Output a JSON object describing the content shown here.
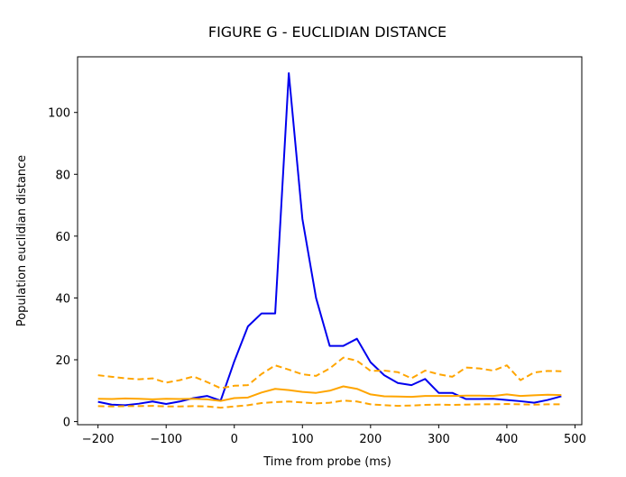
{
  "chart_data": {
    "type": "line",
    "title": "FIGURE G - EUCLIDIAN DISTANCE",
    "xlabel": "Time from probe (ms)",
    "ylabel": "Population euclidian distance",
    "xlim": [
      -230,
      510
    ],
    "ylim": [
      -1,
      118
    ],
    "xticks": [
      -200,
      -100,
      0,
      100,
      200,
      300,
      400,
      500
    ],
    "yticks": [
      0,
      20,
      40,
      60,
      80,
      100
    ],
    "grid": false,
    "x": [
      -200,
      -180,
      -160,
      -140,
      -120,
      -100,
      -80,
      -60,
      -40,
      -20,
      0,
      20,
      40,
      60,
      80,
      100,
      120,
      140,
      160,
      180,
      200,
      220,
      240,
      260,
      280,
      300,
      320,
      340,
      360,
      380,
      400,
      420,
      440,
      460,
      480
    ],
    "series": [
      {
        "color": "#0000ee",
        "style": "solid",
        "values": [
          6.4,
          5.5,
          5.3,
          5.8,
          6.5,
          5.7,
          6.5,
          7.6,
          8.3,
          6.8,
          19.5,
          30.8,
          35.0,
          35.0,
          112.7,
          65.5,
          40.0,
          24.5,
          24.5,
          26.8,
          19.2,
          15.0,
          12.5,
          11.8,
          13.8,
          9.3,
          9.3,
          7.3,
          7.3,
          7.4,
          7.0,
          6.6,
          6.1,
          7.0,
          8.2
        ]
      },
      {
        "color": "#ffa500",
        "style": "solid",
        "values": [
          7.4,
          7.3,
          7.5,
          7.4,
          7.2,
          7.4,
          7.3,
          7.4,
          7.2,
          6.7,
          7.6,
          7.8,
          9.4,
          10.6,
          10.2,
          9.6,
          9.3,
          10.0,
          11.4,
          10.6,
          8.8,
          8.2,
          8.1,
          8.0,
          8.3,
          8.3,
          8.3,
          8.4,
          8.4,
          8.3,
          8.8,
          8.3,
          8.5,
          8.7,
          8.6
        ]
      },
      {
        "color": "#ffa500",
        "style": "dashed",
        "values": [
          15.0,
          14.5,
          14.0,
          13.7,
          14.0,
          12.6,
          13.4,
          14.6,
          12.8,
          10.8,
          11.6,
          11.8,
          15.4,
          18.2,
          16.8,
          15.3,
          14.8,
          17.2,
          20.7,
          19.7,
          16.4,
          16.5,
          16.0,
          14.0,
          16.5,
          15.3,
          14.5,
          17.5,
          17.2,
          16.5,
          18.2,
          13.4,
          15.9,
          16.4,
          16.3
        ]
      },
      {
        "color": "#ffa500",
        "style": "dashed",
        "values": [
          5.0,
          4.9,
          5.0,
          5.0,
          5.1,
          4.9,
          4.9,
          5.0,
          4.9,
          4.5,
          4.9,
          5.3,
          6.0,
          6.3,
          6.5,
          6.2,
          5.9,
          6.1,
          6.8,
          6.5,
          5.6,
          5.3,
          5.1,
          5.2,
          5.4,
          5.5,
          5.4,
          5.5,
          5.6,
          5.6,
          5.7,
          5.6,
          5.5,
          5.6,
          5.6
        ]
      }
    ]
  }
}
